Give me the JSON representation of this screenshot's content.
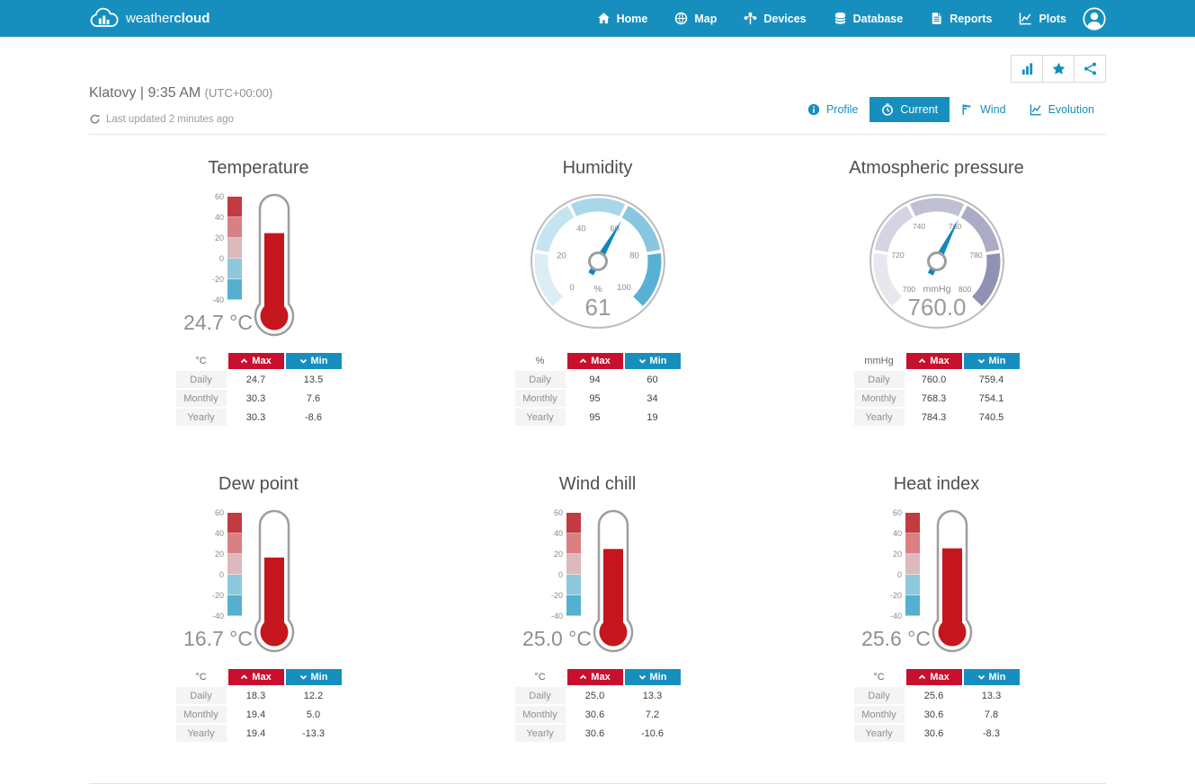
{
  "brand": {
    "logo_text_light": "weather",
    "logo_text_bold": "cloud"
  },
  "navbar": {
    "items": [
      {
        "id": "home",
        "label": "Home",
        "icon": "home-icon"
      },
      {
        "id": "map",
        "label": "Map",
        "icon": "globe-icon"
      },
      {
        "id": "devices",
        "label": "Devices",
        "icon": "devices-icon"
      },
      {
        "id": "database",
        "label": "Database",
        "icon": "database-icon"
      },
      {
        "id": "reports",
        "label": "Reports",
        "icon": "reports-icon"
      },
      {
        "id": "plots",
        "label": "Plots",
        "icon": "plots-icon"
      }
    ]
  },
  "header": {
    "station_title": "Klatovy | 9:35 AM",
    "utc_offset": "(UTC+00:00)",
    "last_updated": "Last updated 2 minutes ago",
    "action_buttons": [
      {
        "id": "statistics",
        "icon": "bar-chart-icon"
      },
      {
        "id": "favorite",
        "icon": "star-icon"
      },
      {
        "id": "share",
        "icon": "share-icon"
      }
    ],
    "tabs": [
      {
        "id": "profile",
        "label": "Profile",
        "icon": "info-icon",
        "active": false
      },
      {
        "id": "current",
        "label": "Current",
        "icon": "clock-icon",
        "active": true
      },
      {
        "id": "wind",
        "label": "Wind",
        "icon": "wind-flag-icon",
        "active": false
      },
      {
        "id": "evolution",
        "label": "Evolution",
        "icon": "evolution-icon",
        "active": false
      }
    ]
  },
  "table_common": {
    "max_label": "Max",
    "min_label": "Min"
  },
  "colors": {
    "accent": "#178fbe",
    "max_red": "#c8102e",
    "thermo_red": "#c4161c",
    "needle": "#1286bd",
    "thermo_scale": [
      "#c23b40",
      "#d98085",
      "#dcb9bc",
      "#8dc8dd",
      "#55b0cf"
    ],
    "blue_segments": [
      "#ddedf5",
      "#c6e3f0",
      "#a9d6e9",
      "#89c6df",
      "#58b0d4"
    ],
    "purple_segments": [
      "#e7e7ef",
      "#d4d4e2",
      "#c0c0d3",
      "#ababc5",
      "#9191b4"
    ]
  },
  "panels": [
    {
      "id": "temperature",
      "kind": "thermometer",
      "title": "Temperature",
      "unit": "°C",
      "value": 24.7,
      "display": "24.7 °C",
      "scale_ticks": [
        "60",
        "40",
        "20",
        "0",
        "-20",
        "-40"
      ],
      "scale_min": -40,
      "scale_max": 60,
      "table": {
        "unit": "°C",
        "rows": [
          {
            "label": "Daily",
            "max": "24.7",
            "min": "13.5"
          },
          {
            "label": "Monthly",
            "max": "30.3",
            "min": "7.6"
          },
          {
            "label": "Yearly",
            "max": "30.3",
            "min": "-8.6"
          }
        ]
      }
    },
    {
      "id": "humidity",
      "kind": "gauge",
      "title": "Humidity",
      "unit": "%",
      "value": 61,
      "display": "61",
      "gauge_min": 0,
      "gauge_max": 100,
      "palette": "blue",
      "tick_labels": [
        "0",
        "20",
        "40",
        "60",
        "80",
        "100"
      ],
      "table": {
        "unit": "%",
        "rows": [
          {
            "label": "Daily",
            "max": "94",
            "min": "60"
          },
          {
            "label": "Monthly",
            "max": "95",
            "min": "34"
          },
          {
            "label": "Yearly",
            "max": "95",
            "min": "19"
          }
        ]
      }
    },
    {
      "id": "pressure",
      "kind": "gauge",
      "title": "Atmospheric pressure",
      "unit": "mmHg",
      "value": 760.0,
      "display": "760.0",
      "gauge_min": 700,
      "gauge_max": 800,
      "palette": "purple",
      "tick_labels": [
        "700",
        "720",
        "740",
        "760",
        "780",
        "800"
      ],
      "table": {
        "unit": "mmHg",
        "rows": [
          {
            "label": "Daily",
            "max": "760.0",
            "min": "759.4"
          },
          {
            "label": "Monthly",
            "max": "768.3",
            "min": "754.1"
          },
          {
            "label": "Yearly",
            "max": "784.3",
            "min": "740.5"
          }
        ]
      }
    },
    {
      "id": "dew-point",
      "kind": "thermometer",
      "title": "Dew point",
      "unit": "°C",
      "value": 16.7,
      "display": "16.7 °C",
      "scale_ticks": [
        "60",
        "40",
        "20",
        "0",
        "-20",
        "-40"
      ],
      "scale_min": -40,
      "scale_max": 60,
      "table": {
        "unit": "°C",
        "rows": [
          {
            "label": "Daily",
            "max": "18.3",
            "min": "12.2"
          },
          {
            "label": "Monthly",
            "max": "19.4",
            "min": "5.0"
          },
          {
            "label": "Yearly",
            "max": "19.4",
            "min": "-13.3"
          }
        ]
      }
    },
    {
      "id": "wind-chill",
      "kind": "thermometer",
      "title": "Wind chill",
      "unit": "°C",
      "value": 25.0,
      "display": "25.0 °C",
      "scale_ticks": [
        "60",
        "40",
        "20",
        "0",
        "-20",
        "-40"
      ],
      "scale_min": -40,
      "scale_max": 60,
      "table": {
        "unit": "°C",
        "rows": [
          {
            "label": "Daily",
            "max": "25.0",
            "min": "13.3"
          },
          {
            "label": "Monthly",
            "max": "30.6",
            "min": "7.2"
          },
          {
            "label": "Yearly",
            "max": "30.6",
            "min": "-10.6"
          }
        ]
      }
    },
    {
      "id": "heat-index",
      "kind": "thermometer",
      "title": "Heat index",
      "unit": "°C",
      "value": 25.6,
      "display": "25.6 °C",
      "scale_ticks": [
        "60",
        "40",
        "20",
        "0",
        "-20",
        "-40"
      ],
      "scale_min": -40,
      "scale_max": 60,
      "table": {
        "unit": "°C",
        "rows": [
          {
            "label": "Daily",
            "max": "25.6",
            "min": "13.3"
          },
          {
            "label": "Monthly",
            "max": "30.6",
            "min": "7.8"
          },
          {
            "label": "Yearly",
            "max": "30.6",
            "min": "-8.3"
          }
        ]
      }
    }
  ]
}
